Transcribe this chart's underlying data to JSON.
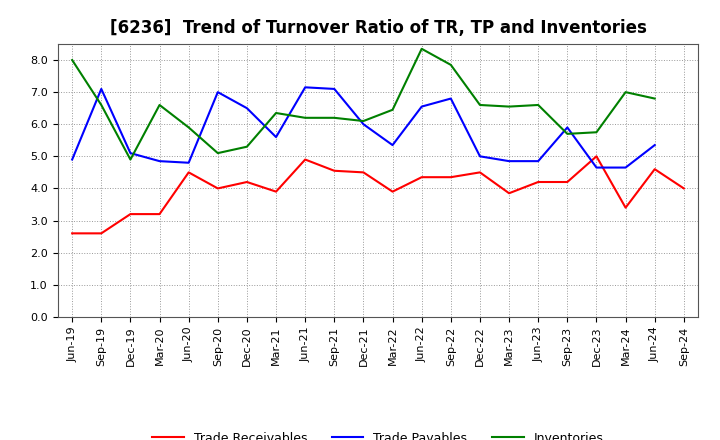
{
  "title": "[6236]  Trend of Turnover Ratio of TR, TP and Inventories",
  "x_labels": [
    "Jun-19",
    "Sep-19",
    "Dec-19",
    "Mar-20",
    "Jun-20",
    "Sep-20",
    "Dec-20",
    "Mar-21",
    "Jun-21",
    "Sep-21",
    "Dec-21",
    "Mar-22",
    "Jun-22",
    "Sep-22",
    "Dec-22",
    "Mar-23",
    "Jun-23",
    "Sep-23",
    "Dec-23",
    "Mar-24",
    "Jun-24",
    "Sep-24"
  ],
  "trade_receivables": [
    2.6,
    2.6,
    3.2,
    3.2,
    4.5,
    4.0,
    4.2,
    3.9,
    4.9,
    4.55,
    4.5,
    3.9,
    4.35,
    4.35,
    4.5,
    3.85,
    4.2,
    4.2,
    5.0,
    3.4,
    4.6,
    4.0
  ],
  "trade_payables": [
    4.9,
    7.1,
    5.1,
    4.85,
    4.8,
    7.0,
    6.5,
    5.6,
    7.15,
    7.1,
    6.0,
    5.35,
    6.55,
    6.8,
    5.0,
    4.85,
    4.85,
    5.9,
    4.65,
    4.65,
    5.35,
    null
  ],
  "inventories": [
    8.0,
    6.6,
    4.9,
    6.6,
    5.9,
    5.1,
    5.3,
    6.35,
    6.2,
    6.2,
    6.1,
    6.45,
    8.35,
    7.85,
    6.6,
    6.55,
    6.6,
    5.7,
    5.75,
    7.0,
    6.8,
    null
  ],
  "tr_color": "#ff0000",
  "tp_color": "#0000ff",
  "inv_color": "#008000",
  "ylim": [
    0.0,
    8.5
  ],
  "yticks": [
    0.0,
    1.0,
    2.0,
    3.0,
    4.0,
    5.0,
    6.0,
    7.0,
    8.0
  ],
  "background_color": "#ffffff",
  "plot_bg_color": "#ffffff",
  "grid_color": "#999999",
  "title_fontsize": 12,
  "tick_fontsize": 8,
  "legend_labels": [
    "Trade Receivables",
    "Trade Payables",
    "Inventories"
  ]
}
